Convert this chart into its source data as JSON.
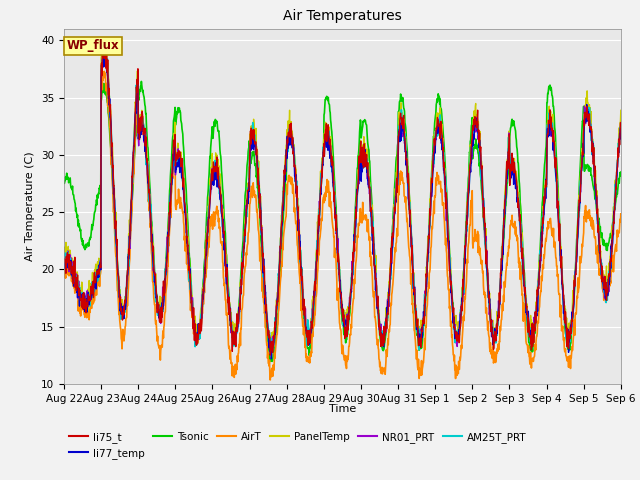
{
  "title": "Air Temperatures",
  "ylabel": "Air Temperature (C)",
  "xlabel": "Time",
  "ylim": [
    10,
    41
  ],
  "yticks": [
    10,
    15,
    20,
    25,
    30,
    35,
    40
  ],
  "date_labels": [
    "Aug 22",
    "Aug 23",
    "Aug 24",
    "Aug 25",
    "Aug 26",
    "Aug 27",
    "Aug 28",
    "Aug 29",
    "Aug 30",
    "Aug 31",
    "Sep 1",
    "Sep 2",
    "Sep 3",
    "Sep 4",
    "Sep 5",
    "Sep 6"
  ],
  "series": {
    "li75_t": {
      "color": "#cc0000",
      "lw": 1.0
    },
    "li77_temp": {
      "color": "#0000cc",
      "lw": 1.0
    },
    "Tsonic": {
      "color": "#00cc00",
      "lw": 1.2
    },
    "AirT": {
      "color": "#ff8800",
      "lw": 1.2
    },
    "PanelTemp": {
      "color": "#cccc00",
      "lw": 1.0
    },
    "NR01_PRT": {
      "color": "#9900cc",
      "lw": 1.0
    },
    "AM25T_PRT": {
      "color": "#00cccc",
      "lw": 1.2
    }
  },
  "wp_flux_label": "WP_flux",
  "wp_flux_color": "#880000",
  "wp_flux_bg": "#ffff99",
  "wp_flux_border": "#aa8800",
  "plot_bg": "#e8e8e8",
  "fig_bg": "#f2f2f2",
  "n_days": 15,
  "ppd": 96,
  "seed": 42
}
